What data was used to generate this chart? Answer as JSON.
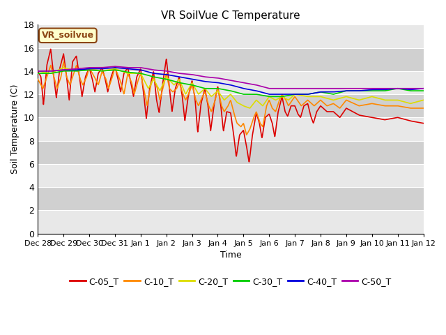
{
  "title": "VR SoilVue C Temperature",
  "xlabel": "Time",
  "ylabel": "Soil Temperature (C)",
  "ylim": [
    0,
    18
  ],
  "yticks": [
    0,
    2,
    4,
    6,
    8,
    10,
    12,
    14,
    16,
    18
  ],
  "background_color": "#ffffff",
  "plot_bg_light": "#e8e8e8",
  "plot_bg_dark": "#d0d0d0",
  "legend_label": "VR_soilvue",
  "legend_box_color": "#ffffcc",
  "legend_box_border": "#8b4513",
  "series_order": [
    "C-05_T",
    "C-10_T",
    "C-20_T",
    "C-30_T",
    "C-40_T",
    "C-50_T"
  ],
  "series": {
    "C-05_T": {
      "color": "#dd0000",
      "linewidth": 1.2
    },
    "C-10_T": {
      "color": "#ff8800",
      "linewidth": 1.2
    },
    "C-20_T": {
      "color": "#dddd00",
      "linewidth": 1.2
    },
    "C-30_T": {
      "color": "#00cc00",
      "linewidth": 1.2
    },
    "C-40_T": {
      "color": "#0000dd",
      "linewidth": 1.2
    },
    "C-50_T": {
      "color": "#aa00aa",
      "linewidth": 1.2
    }
  },
  "xtick_labels": [
    "Dec 28",
    "Dec 29",
    "Dec 30",
    "Dec 31",
    "Jan 1",
    "Jan 2",
    "Jan 3",
    "Jan 4",
    "Jan 5",
    "Jan 6",
    "Jan 7",
    "Jan 8",
    "Jan 9",
    "Jan 10",
    "Jan 11",
    "Jan 12"
  ],
  "xlim": [
    0,
    15
  ]
}
